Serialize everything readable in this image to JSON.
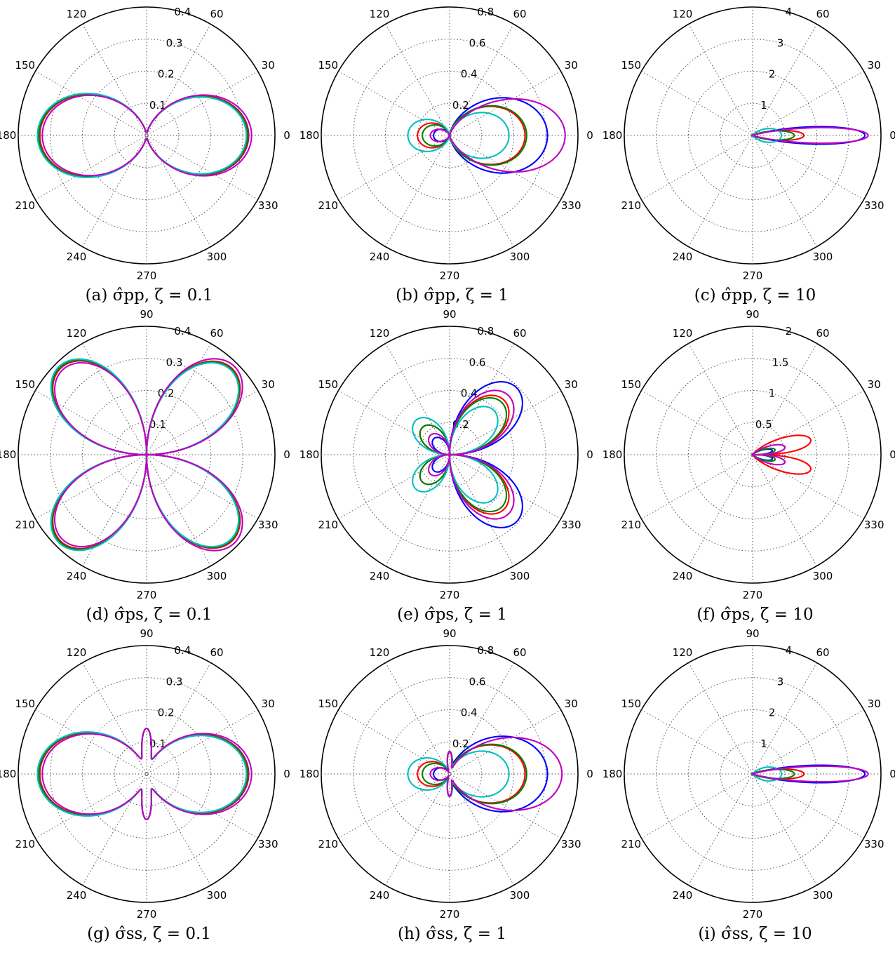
{
  "chart_data": [
    {
      "type": "polar",
      "caption": "(a) σ̂pp, ζ = 0.1",
      "rmax": 0.4,
      "rticks": [
        0.1,
        0.2,
        0.3,
        0.4
      ],
      "angle_ticks": [
        0,
        30,
        60,
        90,
        120,
        150,
        180,
        210,
        240,
        270,
        300,
        330
      ],
      "series": [
        {
          "color": "#0000ff",
          "a": 0.318,
          "b": 0.333,
          "n": 2,
          "m": 1,
          "c": 0.01
        },
        {
          "color": "#ff0000",
          "a": 0.317,
          "b": 0.333,
          "n": 2,
          "m": 1,
          "c": 0.01
        },
        {
          "color": "#008000",
          "a": 0.314,
          "b": 0.336,
          "n": 2,
          "m": 1,
          "c": 0.01
        },
        {
          "color": "#00c0c0",
          "a": 0.311,
          "b": 0.34,
          "n": 2,
          "m": 1,
          "c": 0.01
        },
        {
          "color": "#bf00bf",
          "a": 0.327,
          "b": 0.325,
          "n": 2,
          "m": 1,
          "c": 0.01
        }
      ]
    },
    {
      "type": "polar",
      "caption": "(b) σ̂pp, ζ = 1",
      "rmax": 0.8,
      "rticks": [
        0.2,
        0.4,
        0.6,
        0.8
      ],
      "angle_ticks": [
        0,
        30,
        60,
        90,
        120,
        150,
        180,
        210,
        240,
        270,
        300,
        330
      ],
      "series": [
        {
          "color": "#0000ff",
          "a": 0.61,
          "b": 0.1,
          "n": 2,
          "m": 1,
          "c": 0
        },
        {
          "color": "#ff0000",
          "a": 0.47,
          "b": 0.2,
          "n": 2,
          "m": 1,
          "c": 0
        },
        {
          "color": "#008000",
          "a": 0.48,
          "b": 0.17,
          "n": 2,
          "m": 1,
          "c": 0
        },
        {
          "color": "#00c0c0",
          "a": 0.37,
          "b": 0.26,
          "n": 2,
          "m": 1,
          "c": 0
        },
        {
          "color": "#bf00bf",
          "a": 0.72,
          "b": 0.12,
          "n": 3.2,
          "m": 1,
          "c": 0
        }
      ]
    },
    {
      "type": "polar",
      "caption": "(c) σ̂pp, ζ = 10",
      "rmax": 4,
      "rticks": [
        1,
        2,
        3,
        4
      ],
      "angle_ticks": [
        0,
        30,
        60,
        90,
        120,
        150,
        180,
        210,
        240,
        270,
        300,
        330
      ],
      "series": [
        {
          "color": "#0000ff",
          "a": 3.5,
          "b": 0.02,
          "n": 60,
          "m": 1,
          "c": 0
        },
        {
          "color": "#ff0000",
          "a": 1.6,
          "b": 0.02,
          "n": 40,
          "m": 1,
          "c": 0
        },
        {
          "color": "#008000",
          "a": 1.3,
          "b": 0.02,
          "n": 30,
          "m": 1,
          "c": 0
        },
        {
          "color": "#00c0c0",
          "a": 0.9,
          "b": 0.05,
          "n": 6,
          "m": 1,
          "c": 0
        },
        {
          "color": "#bf00bf",
          "a": 3.6,
          "b": 0.02,
          "n": 80,
          "m": 1,
          "c": 0
        }
      ]
    },
    {
      "type": "polar",
      "caption": "(d) σ̂ps, ζ = 0.1",
      "rmax": 0.4,
      "rticks": [
        0.1,
        0.2,
        0.3,
        0.4
      ],
      "angle_ticks": [
        0,
        30,
        60,
        90,
        120,
        150,
        180,
        210,
        240,
        270,
        300,
        330
      ],
      "series": [
        {
          "color": "#0000ff",
          "a": 0.378,
          "b": 0.38,
          "n": 2,
          "m": 2,
          "c": 0
        },
        {
          "color": "#ff0000",
          "a": 0.378,
          "b": 0.38,
          "n": 2,
          "m": 2,
          "c": 0
        },
        {
          "color": "#008000",
          "a": 0.375,
          "b": 0.383,
          "n": 2,
          "m": 2,
          "c": 0
        },
        {
          "color": "#00c0c0",
          "a": 0.372,
          "b": 0.387,
          "n": 2,
          "m": 2,
          "c": 0
        },
        {
          "color": "#bf00bf",
          "a": 0.388,
          "b": 0.372,
          "n": 2,
          "m": 2,
          "c": 0
        }
      ]
    },
    {
      "type": "polar",
      "caption": "(e) σ̂ps, ζ = 1",
      "rmax": 0.8,
      "rticks": [
        0.2,
        0.4,
        0.6,
        0.8
      ],
      "angle_ticks": [
        0,
        30,
        60,
        90,
        120,
        150,
        180,
        210,
        240,
        270,
        300,
        330
      ],
      "series": [
        {
          "color": "#0000ff",
          "a": 0.59,
          "b": 0.14,
          "n": 2,
          "m": 2,
          "c": 0
        },
        {
          "color": "#ff0000",
          "a": 0.48,
          "b": 0.24,
          "n": 2,
          "m": 2,
          "c": 0
        },
        {
          "color": "#008000",
          "a": 0.46,
          "b": 0.24,
          "n": 2,
          "m": 2,
          "c": 0
        },
        {
          "color": "#00c0c0",
          "a": 0.39,
          "b": 0.3,
          "n": 2,
          "m": 2,
          "c": 0
        },
        {
          "color": "#bf00bf",
          "a": 0.52,
          "b": 0.17,
          "n": 2,
          "m": 2,
          "c": 0
        }
      ]
    },
    {
      "type": "polar",
      "caption": "(f) σ̂ps, ζ = 10",
      "rmax": 2,
      "rticks": [
        0.5,
        1,
        1.5,
        2
      ],
      "angle_ticks": [
        0,
        30,
        60,
        90,
        120,
        150,
        180,
        210,
        240,
        270,
        300,
        330
      ],
      "series": [
        {
          "color": "#0000ff",
          "a": 0.7,
          "b": 0,
          "n": 4,
          "m": 12,
          "c": 0
        },
        {
          "color": "#ff0000",
          "a": 1.9,
          "b": 0,
          "n": 8,
          "m": 8.5,
          "c": 0
        },
        {
          "color": "#008000",
          "a": 0.8,
          "b": 0,
          "n": 4,
          "m": 12,
          "c": 0
        },
        {
          "color": "#bf00bf",
          "a": 1.1,
          "b": 0,
          "n": 4,
          "m": 10,
          "c": 0
        }
      ]
    },
    {
      "type": "polar",
      "caption": "(g) σ̂ss, ζ = 0.1",
      "rmax": 0.4,
      "rticks": [
        0.1,
        0.2,
        0.3,
        0.4
      ],
      "angle_ticks": [
        0,
        30,
        60,
        90,
        120,
        150,
        180,
        210,
        240,
        270,
        300,
        330
      ],
      "series": [
        {
          "color": "#0000ff",
          "a": 0.318,
          "b": 0.333,
          "n": 2,
          "m": 1,
          "c": 0,
          "lobe": 0.142
        },
        {
          "color": "#ff0000",
          "a": 0.317,
          "b": 0.333,
          "n": 2,
          "m": 1,
          "c": 0,
          "lobe": 0.142
        },
        {
          "color": "#008000",
          "a": 0.314,
          "b": 0.336,
          "n": 2,
          "m": 1,
          "c": 0,
          "lobe": 0.142
        },
        {
          "color": "#00c0c0",
          "a": 0.311,
          "b": 0.34,
          "n": 2,
          "m": 1,
          "c": 0,
          "lobe": 0.142
        },
        {
          "color": "#bf00bf",
          "a": 0.327,
          "b": 0.325,
          "n": 2,
          "m": 1,
          "c": 0,
          "lobe": 0.142
        }
      ]
    },
    {
      "type": "polar",
      "caption": "(h) σ̂ss, ζ = 1",
      "rmax": 0.8,
      "rticks": [
        0.2,
        0.4,
        0.6,
        0.8
      ],
      "angle_ticks": [
        0,
        30,
        60,
        90,
        120,
        150,
        180,
        210,
        240,
        270,
        300,
        330
      ],
      "series": [
        {
          "color": "#0000ff",
          "a": 0.61,
          "b": 0.1,
          "n": 2,
          "m": 1,
          "c": 0,
          "lobe": 0.14
        },
        {
          "color": "#ff0000",
          "a": 0.47,
          "b": 0.2,
          "n": 2,
          "m": 1,
          "c": 0,
          "lobe": 0.14
        },
        {
          "color": "#008000",
          "a": 0.48,
          "b": 0.17,
          "n": 2,
          "m": 1,
          "c": 0,
          "lobe": 0.14
        },
        {
          "color": "#00c0c0",
          "a": 0.37,
          "b": 0.26,
          "n": 2,
          "m": 1,
          "c": 0,
          "lobe": 0.14
        },
        {
          "color": "#bf00bf",
          "a": 0.7,
          "b": 0.12,
          "n": 3,
          "m": 1,
          "c": 0,
          "lobe": 0.14
        }
      ]
    },
    {
      "type": "polar",
      "caption": "(i) σ̂ss, ζ = 10",
      "rmax": 4,
      "rticks": [
        1,
        2,
        3,
        4
      ],
      "angle_ticks": [
        0,
        30,
        60,
        90,
        120,
        150,
        180,
        210,
        240,
        270,
        300,
        330
      ],
      "series": [
        {
          "color": "#0000ff",
          "a": 3.5,
          "b": 0.02,
          "n": 60,
          "m": 1,
          "c": 0
        },
        {
          "color": "#ff0000",
          "a": 1.6,
          "b": 0.02,
          "n": 40,
          "m": 1,
          "c": 0
        },
        {
          "color": "#008000",
          "a": 1.3,
          "b": 0.02,
          "n": 30,
          "m": 1,
          "c": 0
        },
        {
          "color": "#00c0c0",
          "a": 0.9,
          "b": 0.05,
          "n": 6,
          "m": 1,
          "c": 0
        },
        {
          "color": "#bf00bf",
          "a": 3.6,
          "b": 0.02,
          "n": 80,
          "m": 1,
          "c": 0
        }
      ]
    }
  ]
}
